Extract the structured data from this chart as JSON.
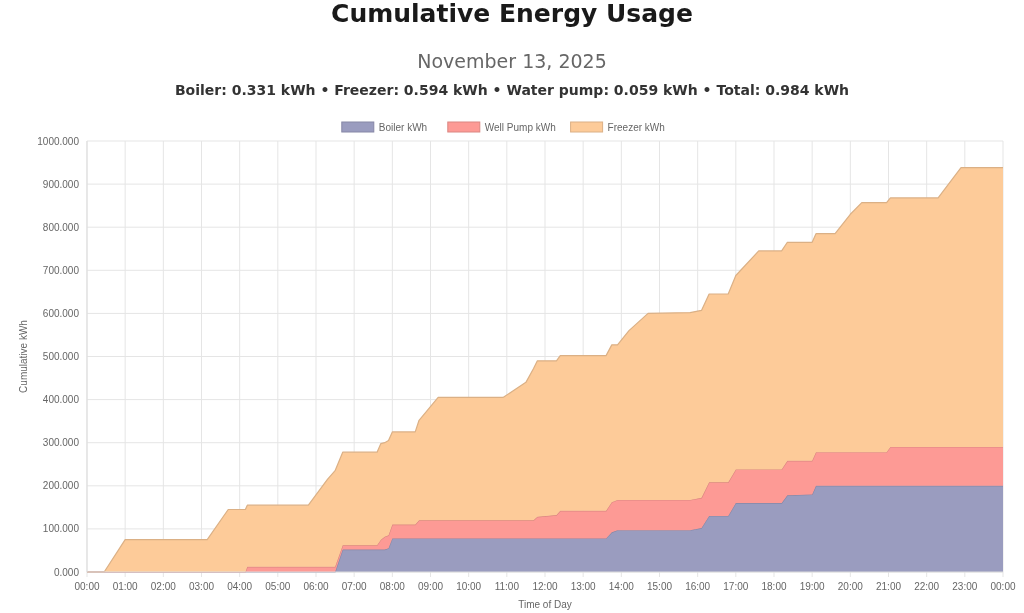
{
  "chart_data": {
    "type": "area",
    "stacked": true,
    "title": "Cumulative Energy Usage",
    "subtitle": "November 13, 2025",
    "annotations": [
      "Boiler: 0.331 kWh • Freezer: 0.594 kWh • Water pump: 0.059 kWh • Total: 0.984 kWh"
    ],
    "xlabel": "Time of Day",
    "ylabel": "Cumulative kWh",
    "x": [
      0,
      0.45,
      1,
      3.15,
      3.7,
      4.0,
      4.15,
      4.2,
      5.8,
      6.3,
      6.5,
      6.7,
      7.6,
      7.7,
      7.8,
      7.9,
      8.0,
      8.6,
      8.7,
      9.2,
      10.9,
      11.5,
      11.7,
      11.8,
      12.3,
      12.4,
      13.6,
      13.75,
      13.9,
      14.2,
      14.7,
      15.8,
      16.1,
      16.3,
      16.8,
      17.0,
      17.6,
      18.2,
      18.35,
      19.0,
      19.1,
      19.6,
      20.0,
      20.3,
      20.95,
      21.05,
      22.3,
      22.9,
      24
    ],
    "series": [
      {
        "name": "Boiler kWh",
        "color": "#9a9cbf",
        "values": [
          0,
          0,
          0,
          0,
          0,
          0,
          0,
          0,
          0,
          0,
          0,
          52,
          52,
          52,
          52,
          55,
          78,
          78,
          78,
          78,
          78,
          78,
          78,
          78,
          78,
          78,
          78,
          92,
          97,
          97,
          97,
          97,
          102,
          130,
          130,
          160,
          160,
          160,
          178,
          180,
          200,
          200,
          200,
          200,
          200,
          200,
          200,
          200,
          200
        ]
      },
      {
        "name": "Well Pump kWh",
        "color": "#fd9a95",
        "values": [
          0,
          0,
          0,
          0,
          0,
          0,
          0,
          12,
          12,
          12,
          12,
          10,
          10,
          23,
          30,
          30,
          32,
          32,
          42,
          42,
          42,
          42,
          42,
          50,
          54,
          64,
          64,
          70,
          70,
          70,
          70,
          70,
          70,
          78,
          78,
          78,
          78,
          78,
          80,
          78,
          78,
          78,
          78,
          78,
          78,
          90,
          90,
          90,
          90
        ]
      },
      {
        "name": "Freezer kWh",
        "color": "#fdcb99",
        "values": [
          0,
          0,
          75,
          75,
          145,
          145,
          145,
          143,
          143,
          203,
          223,
          216,
          216,
          223,
          218,
          220,
          215,
          215,
          232,
          285,
          285,
          320,
          352,
          362,
          358,
          360,
          360,
          365,
          360,
          393,
          433,
          435,
          435,
          437,
          437,
          450,
          507,
          507,
          507,
          507,
          507,
          507,
          552,
          579,
          579,
          578,
          578,
          648,
          648
        ]
      }
    ],
    "xlim": [
      0,
      24
    ],
    "xticks": [
      {
        "value": 0,
        "label": "00:00"
      },
      {
        "value": 1,
        "label": "01:00"
      },
      {
        "value": 2,
        "label": "02:00"
      },
      {
        "value": 3,
        "label": "03:00"
      },
      {
        "value": 4,
        "label": "04:00"
      },
      {
        "value": 5,
        "label": "05:00"
      },
      {
        "value": 6,
        "label": "06:00"
      },
      {
        "value": 7,
        "label": "07:00"
      },
      {
        "value": 8,
        "label": "08:00"
      },
      {
        "value": 9,
        "label": "09:00"
      },
      {
        "value": 10,
        "label": "10:00"
      },
      {
        "value": 11,
        "label": "11:00"
      },
      {
        "value": 12,
        "label": "12:00"
      },
      {
        "value": 13,
        "label": "13:00"
      },
      {
        "value": 14,
        "label": "14:00"
      },
      {
        "value": 15,
        "label": "15:00"
      },
      {
        "value": 16,
        "label": "16:00"
      },
      {
        "value": 17,
        "label": "17:00"
      },
      {
        "value": 18,
        "label": "18:00"
      },
      {
        "value": 19,
        "label": "19:00"
      },
      {
        "value": 20,
        "label": "20:00"
      },
      {
        "value": 21,
        "label": "21:00"
      },
      {
        "value": 22,
        "label": "22:00"
      },
      {
        "value": 23,
        "label": "23:00"
      },
      {
        "value": 24,
        "label": "00:00"
      }
    ],
    "ylim": [
      0,
      1000
    ],
    "yticks": [
      {
        "value": 0,
        "label": "0.000"
      },
      {
        "value": 100,
        "label": "100.000"
      },
      {
        "value": 200,
        "label": "200.000"
      },
      {
        "value": 300,
        "label": "300.000"
      },
      {
        "value": 400,
        "label": "400.000"
      },
      {
        "value": 500,
        "label": "500.000"
      },
      {
        "value": 600,
        "label": "600.000"
      },
      {
        "value": 700,
        "label": "700.000"
      },
      {
        "value": 800,
        "label": "800.000"
      },
      {
        "value": 900,
        "label": "900.000"
      },
      {
        "value": 1000,
        "label": "1000.000"
      }
    ],
    "grid": true,
    "legend": "top",
    "marker": "none",
    "line_style": "solid"
  }
}
